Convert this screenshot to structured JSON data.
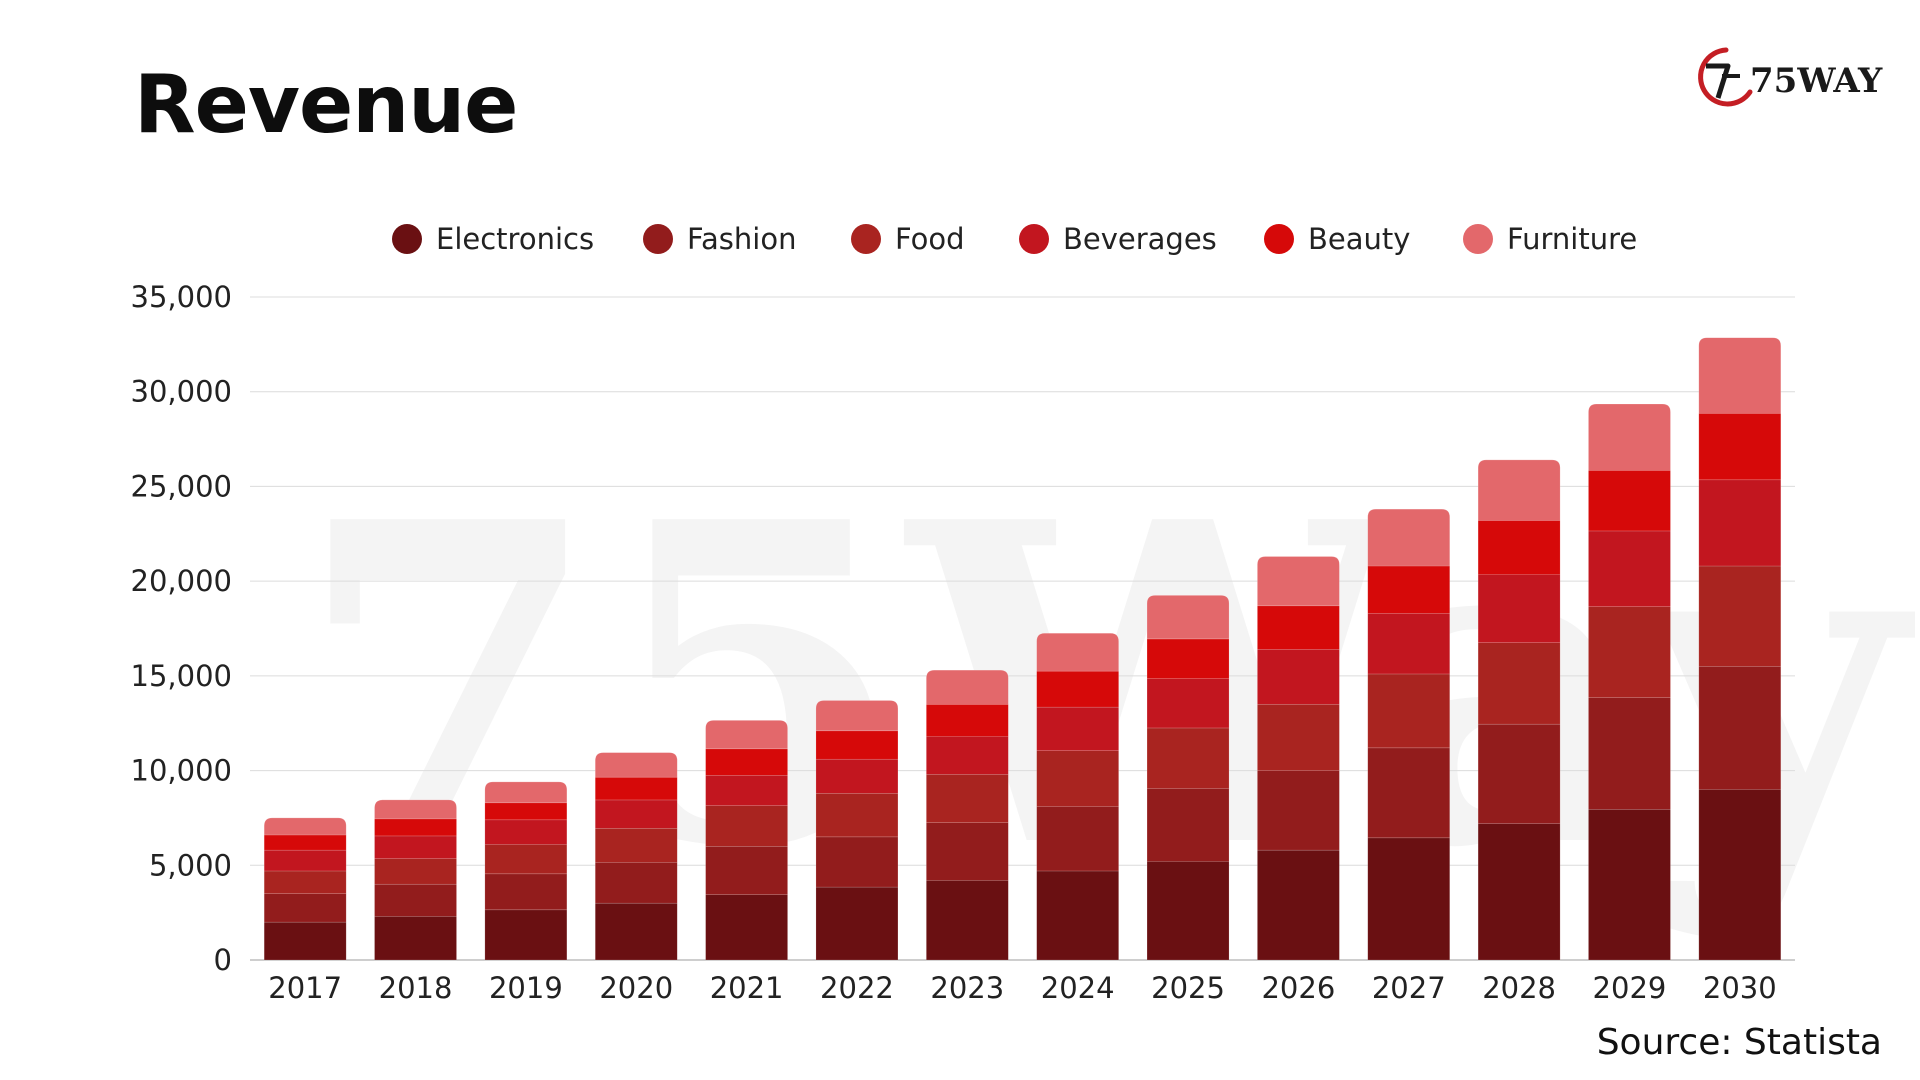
{
  "title": "Revenue",
  "source": "Source: Statista",
  "logo": {
    "text": "75WAY",
    "icon": "75way-logo-icon",
    "watermark": "75Way"
  },
  "colors": {
    "Electronics": "#6a1012",
    "Fashion": "#921c1c",
    "Food": "#a92420",
    "Beverages": "#c2161f",
    "Beauty": "#d60909",
    "Furniture": "#e3686b",
    "accent": "#c41e24"
  },
  "chart_data": {
    "type": "bar",
    "stacked": true,
    "title": "Revenue",
    "xlabel": "",
    "ylabel": "",
    "ylim": [
      0,
      35000
    ],
    "yticks": [
      0,
      5000,
      10000,
      15000,
      20000,
      25000,
      30000,
      35000
    ],
    "ytick_labels": [
      "0",
      "5,000",
      "10,000",
      "15,000",
      "20,000",
      "25,000",
      "30,000",
      "35,000"
    ],
    "grid": true,
    "legend_position": "top",
    "categories": [
      "2017",
      "2018",
      "2019",
      "2020",
      "2021",
      "2022",
      "2023",
      "2024",
      "2025",
      "2026",
      "2027",
      "2028",
      "2029",
      "2030"
    ],
    "series": [
      {
        "name": "Electronics",
        "values": [
          2000,
          2300,
          2650,
          3000,
          3450,
          3850,
          4200,
          4700,
          5200,
          5800,
          6450,
          7200,
          7950,
          9000
        ]
      },
      {
        "name": "Fashion",
        "values": [
          1500,
          1700,
          1900,
          2150,
          2550,
          2650,
          3050,
          3400,
          3850,
          4200,
          4750,
          5250,
          5900,
          6500
        ]
      },
      {
        "name": "Food",
        "values": [
          1200,
          1350,
          1550,
          1800,
          2150,
          2300,
          2550,
          2950,
          3200,
          3500,
          3900,
          4300,
          4800,
          5300
        ]
      },
      {
        "name": "Beverages",
        "values": [
          1100,
          1200,
          1300,
          1500,
          1600,
          1800,
          2000,
          2300,
          2600,
          2900,
          3200,
          3600,
          4000,
          4550
        ]
      },
      {
        "name": "Beauty",
        "values": [
          800,
          900,
          900,
          1200,
          1400,
          1500,
          1700,
          1900,
          2100,
          2300,
          2500,
          2850,
          3200,
          3500
        ]
      },
      {
        "name": "Furniture",
        "values": [
          900,
          1000,
          1100,
          1300,
          1500,
          1600,
          1800,
          2000,
          2300,
          2600,
          3000,
          3200,
          3500,
          4000
        ]
      }
    ]
  }
}
